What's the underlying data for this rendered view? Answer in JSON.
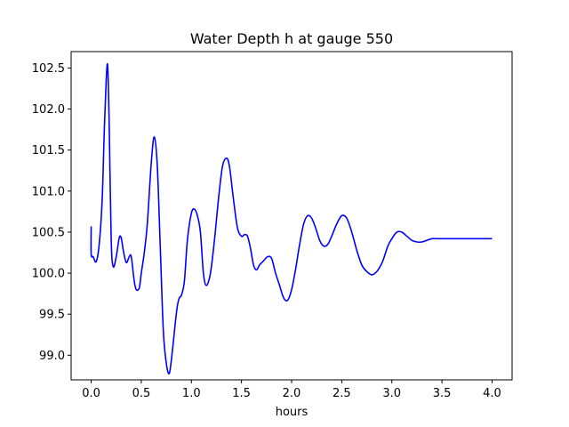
{
  "chart_data": {
    "type": "line",
    "title": "Water Depth h at gauge 550",
    "xlabel": "hours",
    "ylabel": "",
    "xlim": [
      -0.2,
      4.2
    ],
    "ylim": [
      98.7,
      102.7
    ],
    "xticks": [
      0.0,
      0.5,
      1.0,
      1.5,
      2.0,
      2.5,
      3.0,
      3.5,
      4.0
    ],
    "xtick_labels": [
      "0.0",
      "0.5",
      "1.0",
      "1.5",
      "2.0",
      "2.5",
      "3.0",
      "3.5",
      "4.0"
    ],
    "yticks": [
      99.0,
      99.5,
      100.0,
      100.5,
      101.0,
      101.5,
      102.0,
      102.5
    ],
    "ytick_labels": [
      "99.0",
      "99.5",
      "100.0",
      "100.5",
      "101.0",
      "101.5",
      "102.0",
      "102.5"
    ],
    "grid": false,
    "series": [
      {
        "color": "#0000ff",
        "x": [
          0.0,
          0.0,
          0.02,
          0.05,
          0.08,
          0.11,
          0.13,
          0.15,
          0.165,
          0.18,
          0.2,
          0.22,
          0.25,
          0.28,
          0.3,
          0.32,
          0.35,
          0.38,
          0.4,
          0.43,
          0.45,
          0.48,
          0.5,
          0.53,
          0.56,
          0.6,
          0.63,
          0.66,
          0.69,
          0.72,
          0.75,
          0.78,
          0.81,
          0.84,
          0.86,
          0.88,
          0.9,
          0.93,
          0.96,
          1.0,
          1.03,
          1.06,
          1.09,
          1.12,
          1.15,
          1.19,
          1.23,
          1.27,
          1.31,
          1.35,
          1.38,
          1.42,
          1.46,
          1.5,
          1.53,
          1.56,
          1.59,
          1.62,
          1.65,
          1.68,
          1.72,
          1.76,
          1.8,
          1.84,
          1.88,
          1.92,
          1.96,
          2.0,
          2.04,
          2.08,
          2.12,
          2.16,
          2.2,
          2.24,
          2.28,
          2.32,
          2.36,
          2.4,
          2.45,
          2.5,
          2.55,
          2.6,
          2.65,
          2.7,
          2.75,
          2.8,
          2.85,
          2.9,
          2.93,
          2.96,
          3.0,
          3.05,
          3.1,
          3.15,
          3.2,
          3.25,
          3.3,
          3.35,
          3.4,
          3.45,
          3.5,
          3.55,
          3.6,
          3.65,
          3.7,
          3.75,
          3.8,
          3.85,
          3.9,
          3.95,
          4.0
        ],
        "y": [
          100.57,
          100.23,
          100.2,
          100.14,
          100.35,
          100.9,
          101.7,
          102.35,
          102.52,
          101.8,
          100.4,
          100.08,
          100.2,
          100.43,
          100.43,
          100.28,
          100.13,
          100.2,
          100.2,
          99.9,
          99.8,
          99.82,
          100.0,
          100.25,
          100.6,
          101.35,
          101.66,
          101.3,
          100.3,
          99.3,
          98.9,
          98.78,
          99.05,
          99.4,
          99.6,
          99.7,
          99.73,
          99.9,
          100.4,
          100.73,
          100.78,
          100.7,
          100.5,
          100.0,
          99.85,
          100.0,
          100.4,
          100.9,
          101.3,
          101.4,
          101.3,
          100.9,
          100.55,
          100.45,
          100.47,
          100.45,
          100.3,
          100.1,
          100.04,
          100.1,
          100.15,
          100.2,
          100.18,
          100.0,
          99.85,
          99.7,
          99.67,
          99.8,
          100.05,
          100.35,
          100.6,
          100.7,
          100.67,
          100.55,
          100.4,
          100.33,
          100.35,
          100.45,
          100.6,
          100.7,
          100.67,
          100.5,
          100.28,
          100.1,
          100.02,
          99.98,
          100.02,
          100.12,
          100.22,
          100.33,
          100.42,
          100.5,
          100.5,
          100.45,
          100.4,
          100.38,
          100.38,
          100.4,
          100.42,
          100.42,
          100.42,
          100.42,
          100.42,
          100.42,
          100.42,
          100.42,
          100.42,
          100.42,
          100.42,
          100.42,
          100.42
        ]
      }
    ]
  }
}
